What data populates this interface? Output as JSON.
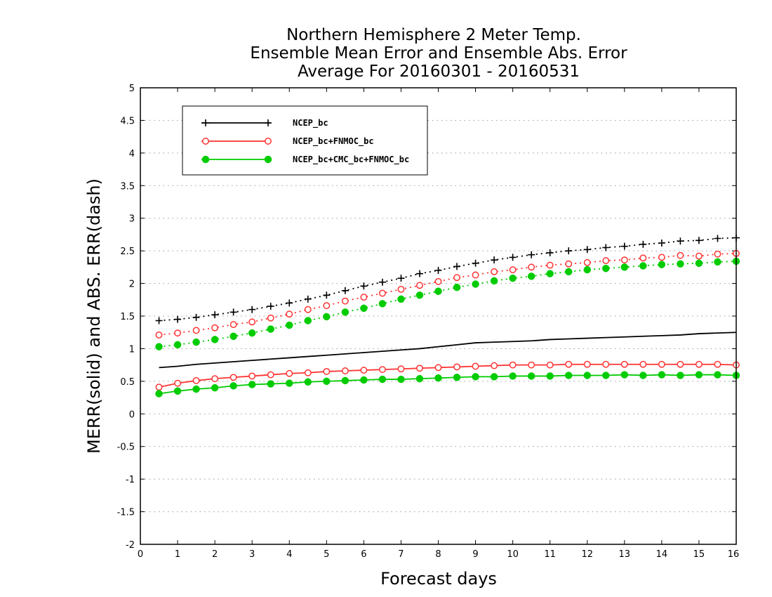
{
  "chart_data": {
    "type": "line",
    "title_lines": [
      "Northern Hemisphere 2 Meter Temp.",
      "Ensemble Mean Error and Ensemble Abs. Error",
      "Average For 20160301 - 20160531"
    ],
    "xlabel": "Forecast days",
    "ylabel": "MERR(solid) and ABS. ERR(dash)",
    "xlim": [
      0,
      16
    ],
    "ylim": [
      -2,
      5
    ],
    "x_ticks": [
      "0",
      "1",
      "2",
      "3",
      "4",
      "5",
      "6",
      "7",
      "8",
      "9",
      "10",
      "11",
      "12",
      "13",
      "14",
      "15",
      "16"
    ],
    "y_ticks": [
      "-2",
      "-1.5",
      "-1",
      "-0.5",
      "0",
      "0.5",
      "1",
      "1.5",
      "2",
      "2.5",
      "3",
      "3.5",
      "4",
      "4.5",
      "5"
    ],
    "grid": "horizontal dotted",
    "legend_position": "top-left",
    "x": [
      0.5,
      1,
      1.5,
      2,
      2.5,
      3,
      3.5,
      4,
      4.5,
      5,
      5.5,
      6,
      6.5,
      7,
      7.5,
      8,
      8.5,
      9,
      9.5,
      10,
      10.5,
      11,
      11.5,
      12,
      12.5,
      13,
      13.5,
      14,
      14.5,
      15,
      15.5,
      16
    ],
    "series": [
      {
        "name": "NCEP_bc",
        "color": "#000000",
        "marker": "plus",
        "merr": [
          0.71,
          0.73,
          0.76,
          0.78,
          0.8,
          0.82,
          0.84,
          0.86,
          0.88,
          0.9,
          0.92,
          0.94,
          0.96,
          0.98,
          1.0,
          1.03,
          1.06,
          1.09,
          1.1,
          1.11,
          1.12,
          1.14,
          1.15,
          1.16,
          1.17,
          1.18,
          1.19,
          1.2,
          1.21,
          1.23,
          1.24,
          1.25
        ],
        "abs_err": [
          1.43,
          1.45,
          1.48,
          1.52,
          1.56,
          1.6,
          1.65,
          1.7,
          1.76,
          1.82,
          1.89,
          1.96,
          2.02,
          2.08,
          2.15,
          2.2,
          2.26,
          2.31,
          2.36,
          2.4,
          2.44,
          2.47,
          2.5,
          2.52,
          2.55,
          2.57,
          2.6,
          2.62,
          2.65,
          2.66,
          2.69,
          2.7
        ]
      },
      {
        "name": "NCEP_bc+FNMOC_bc",
        "color": "#ff3333",
        "marker": "open-circle",
        "merr": [
          0.41,
          0.47,
          0.51,
          0.54,
          0.56,
          0.58,
          0.6,
          0.62,
          0.63,
          0.65,
          0.66,
          0.67,
          0.68,
          0.69,
          0.7,
          0.71,
          0.72,
          0.73,
          0.74,
          0.75,
          0.75,
          0.75,
          0.76,
          0.76,
          0.76,
          0.76,
          0.76,
          0.76,
          0.76,
          0.76,
          0.76,
          0.75
        ],
        "abs_err": [
          1.21,
          1.24,
          1.28,
          1.32,
          1.37,
          1.41,
          1.47,
          1.53,
          1.6,
          1.66,
          1.73,
          1.79,
          1.85,
          1.91,
          1.97,
          2.03,
          2.09,
          2.13,
          2.18,
          2.21,
          2.25,
          2.28,
          2.3,
          2.32,
          2.35,
          2.36,
          2.39,
          2.4,
          2.43,
          2.42,
          2.45,
          2.46
        ]
      },
      {
        "name": "NCEP_bc+CMC_bc+FNMOC_bc",
        "color": "#00cc00",
        "marker": "filled-circle",
        "merr": [
          0.31,
          0.35,
          0.38,
          0.4,
          0.43,
          0.45,
          0.46,
          0.47,
          0.49,
          0.5,
          0.51,
          0.52,
          0.53,
          0.53,
          0.54,
          0.55,
          0.56,
          0.57,
          0.57,
          0.58,
          0.58,
          0.58,
          0.59,
          0.59,
          0.59,
          0.6,
          0.59,
          0.6,
          0.59,
          0.6,
          0.6,
          0.59
        ],
        "abs_err": [
          1.03,
          1.06,
          1.1,
          1.14,
          1.19,
          1.24,
          1.3,
          1.36,
          1.43,
          1.49,
          1.56,
          1.62,
          1.69,
          1.76,
          1.82,
          1.88,
          1.94,
          1.99,
          2.04,
          2.08,
          2.11,
          2.15,
          2.18,
          2.21,
          2.23,
          2.25,
          2.27,
          2.29,
          2.3,
          2.31,
          2.33,
          2.34
        ]
      }
    ]
  }
}
